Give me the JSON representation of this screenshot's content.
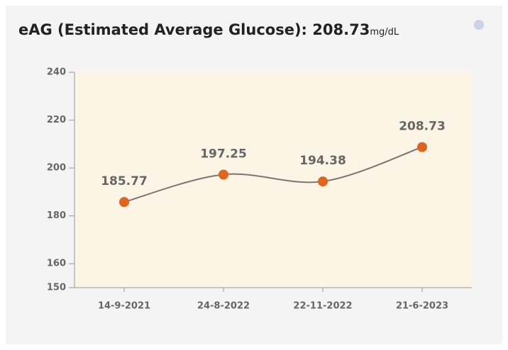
{
  "header": {
    "title": "eAG (Estimated Average Glucose):",
    "value": "208.73",
    "unit": "mg/dL"
  },
  "chart_data": {
    "type": "line",
    "categories": [
      "14-9-2021",
      "24-8-2022",
      "22-11-2022",
      "21-6-2023"
    ],
    "values": [
      185.77,
      197.25,
      194.38,
      208.73
    ],
    "color": "#777777",
    "marker_color": "#e0641e",
    "plot_background": "#fcf4e4",
    "ylim": [
      150,
      240
    ],
    "yticks": [
      150,
      160,
      180,
      200,
      220,
      240
    ],
    "smooth": true,
    "data_labels": true
  }
}
